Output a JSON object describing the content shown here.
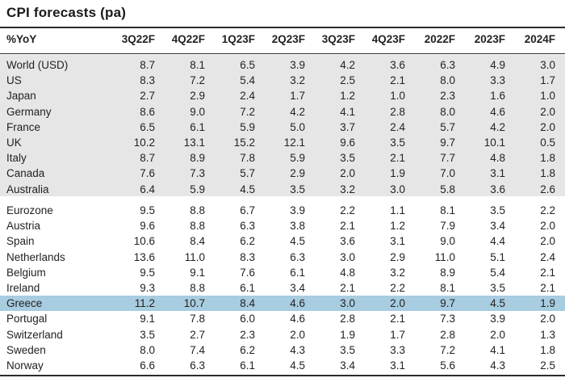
{
  "title": "CPI forecasts (pa)",
  "header": [
    "%YoY",
    "3Q22F",
    "4Q22F",
    "1Q23F",
    "2Q23F",
    "3Q23F",
    "4Q23F",
    "2022F",
    "2023F",
    "2024F"
  ],
  "group1": [
    {
      "country": "World (USD)",
      "values": [
        "8.7",
        "8.1",
        "6.5",
        "3.9",
        "4.2",
        "3.6",
        "6.3",
        "4.9",
        "3.0"
      ]
    },
    {
      "country": "US",
      "values": [
        "8.3",
        "7.2",
        "5.4",
        "3.2",
        "2.5",
        "2.1",
        "8.0",
        "3.3",
        "1.7"
      ]
    },
    {
      "country": "Japan",
      "values": [
        "2.7",
        "2.9",
        "2.4",
        "1.7",
        "1.2",
        "1.0",
        "2.3",
        "1.6",
        "1.0"
      ]
    },
    {
      "country": "Germany",
      "values": [
        "8.6",
        "9.0",
        "7.2",
        "4.2",
        "4.1",
        "2.8",
        "8.0",
        "4.6",
        "2.0"
      ]
    },
    {
      "country": "France",
      "values": [
        "6.5",
        "6.1",
        "5.9",
        "5.0",
        "3.7",
        "2.4",
        "5.7",
        "4.2",
        "2.0"
      ]
    },
    {
      "country": "UK",
      "values": [
        "10.2",
        "13.1",
        "15.2",
        "12.1",
        "9.6",
        "3.5",
        "9.7",
        "10.1",
        "0.5"
      ]
    },
    {
      "country": "Italy",
      "values": [
        "8.7",
        "8.9",
        "7.8",
        "5.9",
        "3.5",
        "2.1",
        "7.7",
        "4.8",
        "1.8"
      ]
    },
    {
      "country": "Canada",
      "values": [
        "7.6",
        "7.3",
        "5.7",
        "2.9",
        "2.0",
        "1.9",
        "7.0",
        "3.1",
        "1.8"
      ]
    },
    {
      "country": "Australia",
      "values": [
        "6.4",
        "5.9",
        "4.5",
        "3.5",
        "3.2",
        "3.0",
        "5.8",
        "3.6",
        "2.6"
      ]
    }
  ],
  "group2": [
    {
      "country": "Eurozone",
      "values": [
        "9.5",
        "8.8",
        "6.7",
        "3.9",
        "2.2",
        "1.1",
        "8.1",
        "3.5",
        "2.2"
      ]
    },
    {
      "country": "Austria",
      "values": [
        "9.6",
        "8.8",
        "6.3",
        "3.8",
        "2.1",
        "1.2",
        "7.9",
        "3.4",
        "2.0"
      ]
    },
    {
      "country": "Spain",
      "values": [
        "10.6",
        "8.4",
        "6.2",
        "4.5",
        "3.6",
        "3.1",
        "9.0",
        "4.4",
        "2.0"
      ]
    },
    {
      "country": "Netherlands",
      "values": [
        "13.6",
        "11.0",
        "8.3",
        "6.3",
        "3.0",
        "2.9",
        "11.0",
        "5.1",
        "2.4"
      ]
    },
    {
      "country": "Belgium",
      "values": [
        "9.5",
        "9.1",
        "7.6",
        "6.1",
        "4.8",
        "3.2",
        "8.9",
        "5.4",
        "2.1"
      ]
    },
    {
      "country": "Ireland",
      "values": [
        "9.3",
        "8.8",
        "6.1",
        "3.4",
        "2.1",
        "2.2",
        "8.1",
        "3.5",
        "2.1"
      ]
    },
    {
      "country": "Greece",
      "values": [
        "11.2",
        "10.7",
        "8.4",
        "4.6",
        "3.0",
        "2.0",
        "9.7",
        "4.5",
        "1.9"
      ],
      "highlight": true
    },
    {
      "country": "Portugal",
      "values": [
        "9.1",
        "7.8",
        "6.0",
        "4.6",
        "2.8",
        "2.1",
        "7.3",
        "3.9",
        "2.0"
      ]
    },
    {
      "country": "Switzerland",
      "values": [
        "3.5",
        "2.7",
        "2.3",
        "2.0",
        "1.9",
        "1.7",
        "2.8",
        "2.0",
        "1.3"
      ]
    },
    {
      "country": "Sweden",
      "values": [
        "8.0",
        "7.4",
        "6.2",
        "4.3",
        "3.5",
        "3.3",
        "7.2",
        "4.1",
        "1.8"
      ]
    },
    {
      "country": "Norway",
      "values": [
        "6.6",
        "6.3",
        "6.1",
        "4.5",
        "3.4",
        "3.1",
        "5.6",
        "4.3",
        "2.5"
      ]
    }
  ],
  "colors": {
    "band": "#e6e6e6",
    "highlight": "#a8cce0",
    "rule": "#2b2b2b"
  }
}
